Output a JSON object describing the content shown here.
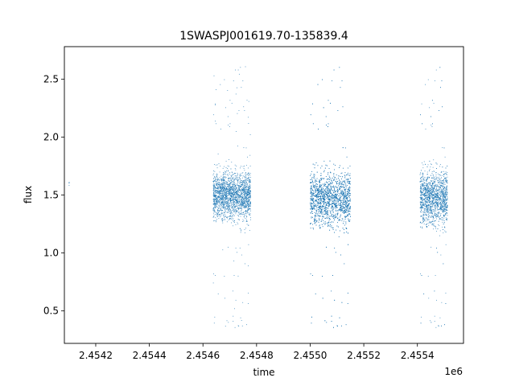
{
  "chart_data": {
    "type": "scatter",
    "title": "1SWASPJ001619.70-135839.4",
    "xlabel": "time",
    "ylabel": "flux",
    "x_offset_label": "1e6",
    "xlim": [
      2454083,
      2455572
    ],
    "ylim": [
      0.22,
      2.78
    ],
    "x_ticks": [
      2454200,
      2454400,
      2454600,
      2454800,
      2455000,
      2455200,
      2455400
    ],
    "x_tick_labels": [
      "2.4542",
      "2.4544",
      "2.4546",
      "2.4548",
      "2.4550",
      "2.4552",
      "2.4554"
    ],
    "y_ticks": [
      0.5,
      1.0,
      1.5,
      2.0,
      2.5
    ],
    "y_tick_labels": [
      "0.5",
      "1.0",
      "1.5",
      "2.0",
      "2.5"
    ],
    "grid": false,
    "marker_color": "#1f77b4",
    "series": [
      {
        "clusters": [
          {
            "x_range": [
              2454100,
              2454101
            ],
            "y_center": 1.58,
            "y_spread": 0.05,
            "count": 4
          },
          {
            "x_range": [
              2454638,
              2454778
            ],
            "y_center": 1.5,
            "y_spread": 0.14,
            "count": 2200
          },
          {
            "x_range": [
              2455000,
              2455150
            ],
            "y_center": 1.47,
            "y_spread": 0.16,
            "count": 3400
          },
          {
            "x_range": [
              2455410,
              2455512
            ],
            "y_center": 1.48,
            "y_spread": 0.16,
            "count": 1900
          }
        ],
        "outlier_extent": {
          "y_min": 0.33,
          "y_max": 2.64
        }
      }
    ]
  }
}
